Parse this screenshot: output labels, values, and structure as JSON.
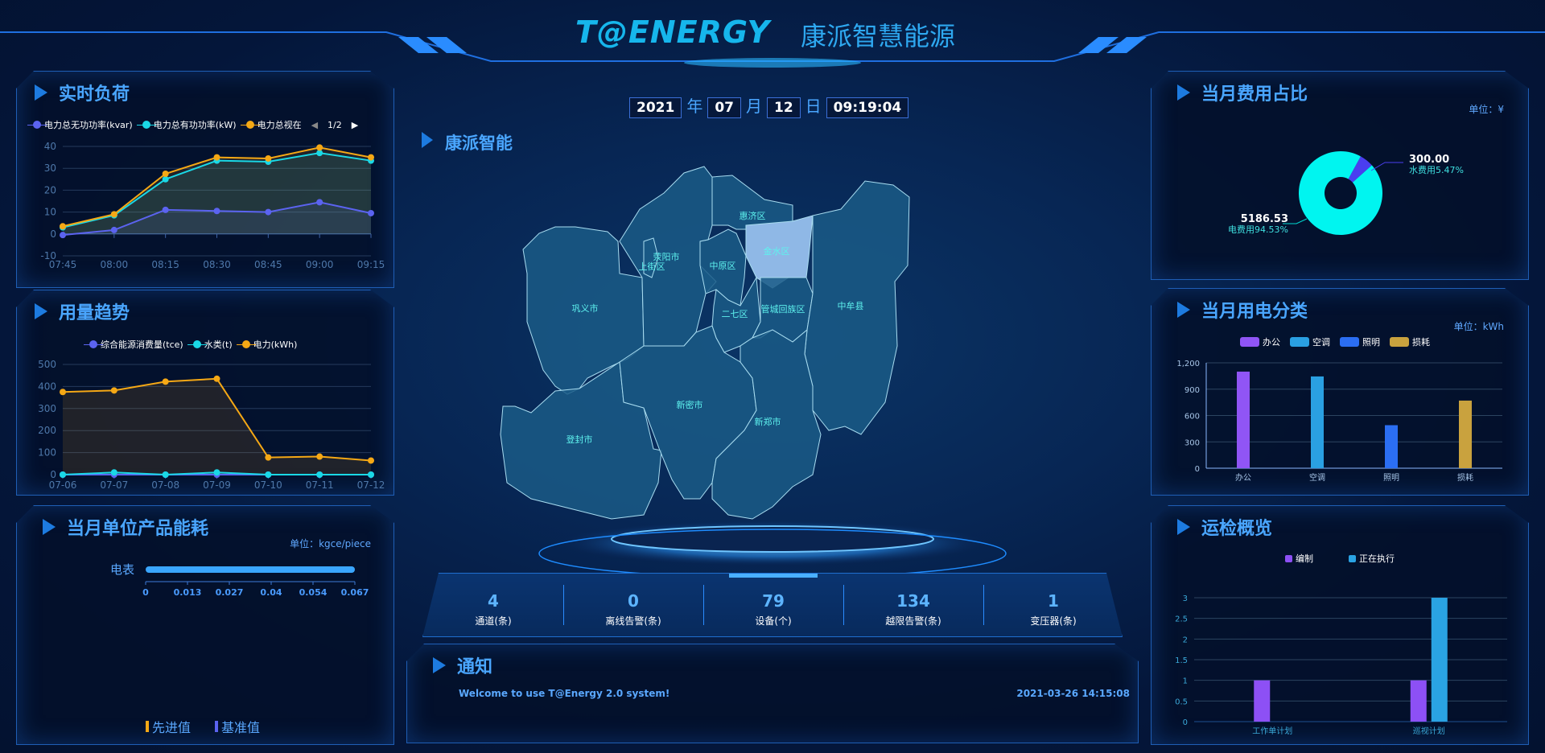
{
  "header": {
    "logo": "T@ENERGY",
    "title": "康派智慧能源"
  },
  "date": {
    "year": "2021",
    "year_unit": "年",
    "month": "07",
    "month_unit": "月",
    "day": "12",
    "day_unit": "日",
    "time": "09:19:04"
  },
  "map": {
    "title": "康派智能",
    "highlight": "金水区",
    "districts": [
      "巩义市",
      "登封市",
      "荥阳市",
      "上街区",
      "惠济区",
      "中原区",
      "金水区",
      "二七区",
      "管城回族区",
      "中牟县",
      "新密市",
      "新郑市"
    ]
  },
  "stats": [
    {
      "value": "4",
      "label": "通道(条)"
    },
    {
      "value": "0",
      "label": "离线告警(条)"
    },
    {
      "value": "79",
      "label": "设备(个)"
    },
    {
      "value": "134",
      "label": "越限告警(条)"
    },
    {
      "value": "1",
      "label": "变压器(条)"
    }
  ],
  "notice": {
    "title": "通知",
    "message": "Welcome to use T@Energy 2.0 system!",
    "time": "2021-03-26 14:15:08"
  },
  "panels": {
    "realtime": {
      "title": "实时负荷",
      "legend_page": "1/2"
    },
    "trend": {
      "title": "用量趋势"
    },
    "unit_product": {
      "title": "当月单位产品能耗",
      "unit": "单位：kgce/piece"
    },
    "cost": {
      "title": "当月费用占比",
      "unit": "单位：¥"
    },
    "elec_class": {
      "title": "当月用电分类",
      "unit": "单位：kWh"
    },
    "inspection": {
      "title": "运检概览"
    }
  },
  "chart_data": [
    {
      "type": "line",
      "categories": [
        "07:45",
        "08:00",
        "08:15",
        "08:30",
        "08:45",
        "09:00",
        "09:15"
      ],
      "ylim": [
        -10,
        40
      ],
      "yticks": [
        -10,
        0,
        10,
        20,
        30,
        40
      ],
      "grid": true,
      "legend": "top",
      "series": [
        {
          "name": "电力总无功功率(kvar)",
          "color": "#5b63f0",
          "values": [
            -0.5,
            1.8,
            11,
            10.5,
            10,
            14.5,
            9.5
          ]
        },
        {
          "name": "电力总有功功率(kW)",
          "color": "#1ad8e6",
          "values": [
            3,
            8.5,
            25,
            33.5,
            33,
            37,
            33.5
          ]
        },
        {
          "name": "电力总视在",
          "color": "#f5a815",
          "values": [
            3.5,
            9,
            27.5,
            35,
            34.5,
            39.5,
            35
          ]
        }
      ]
    },
    {
      "type": "line",
      "categories": [
        "07-06",
        "07-07",
        "07-08",
        "07-09",
        "07-10",
        "07-11",
        "07-12"
      ],
      "ylim": [
        0,
        500
      ],
      "yticks": [
        0,
        100,
        200,
        300,
        400,
        500
      ],
      "grid": true,
      "legend": "top",
      "series": [
        {
          "name": "综合能源消费量(tce)",
          "color": "#5b63f0",
          "values": [
            0,
            0,
            0,
            0,
            0,
            0,
            0
          ]
        },
        {
          "name": "水类(t)",
          "color": "#1ad8e6",
          "values": [
            0,
            10,
            0,
            10,
            0,
            0,
            0
          ]
        },
        {
          "name": "电力(kWh)",
          "color": "#f5a815",
          "values": [
            375,
            382,
            422,
            435,
            78,
            82,
            64
          ]
        }
      ]
    },
    {
      "type": "bar",
      "orientation": "horizontal",
      "categories": [
        "电表"
      ],
      "values": [
        0.067
      ],
      "xlim": [
        0,
        0.067
      ],
      "xticks": [
        "0",
        "0.013",
        "0.027",
        "0.04",
        "0.054",
        "0.067"
      ],
      "legend": [
        {
          "name": "先进值",
          "color": "#f5a815"
        },
        {
          "name": "基准值",
          "color": "#5b63f0"
        }
      ]
    },
    {
      "type": "pie",
      "slices": [
        {
          "name": "电费用",
          "value": "5186.53",
          "percent": "94.53%",
          "color": "#00f5f0"
        },
        {
          "name": "水费用",
          "value": "300.00",
          "percent": "5.47%",
          "color": "#4a3ef0"
        }
      ]
    },
    {
      "type": "bar",
      "categories": [
        "办公",
        "空调",
        "照明",
        "损耗"
      ],
      "values": [
        1100,
        1045,
        490,
        770
      ],
      "colors": [
        "#9055f5",
        "#2aa0e2",
        "#2b6ef2",
        "#c9a23e"
      ],
      "ylim": [
        0,
        1200
      ],
      "yticks": [
        "0",
        "300",
        "600",
        "900",
        "1,200"
      ],
      "grid": true,
      "legend": "top"
    },
    {
      "type": "bar",
      "categories": [
        "工作单计划",
        "巡视计划"
      ],
      "ylim": [
        0,
        3
      ],
      "yticks": [
        "0",
        "0.5",
        "1",
        "1.5",
        "2",
        "2.5",
        "3"
      ],
      "grid": true,
      "legend": "top",
      "series": [
        {
          "name": "编制",
          "color": "#8d50f5",
          "values": [
            1,
            1
          ]
        },
        {
          "name": "正在执行",
          "color": "#2aa3e3",
          "values": [
            0,
            3
          ]
        }
      ]
    }
  ]
}
